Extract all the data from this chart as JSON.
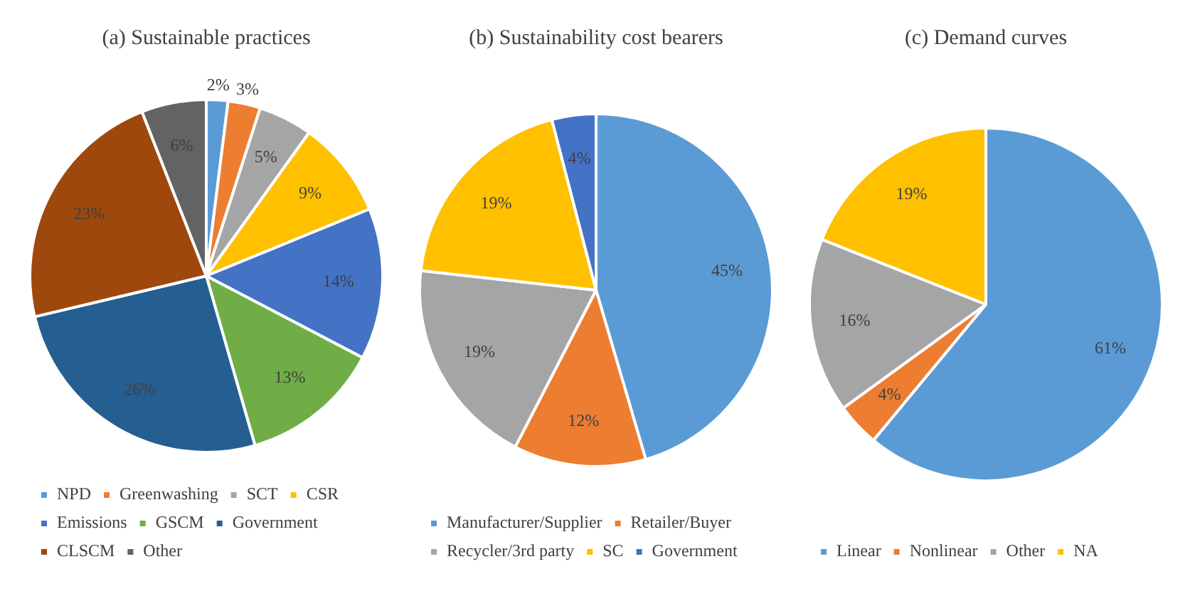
{
  "chart_data": [
    {
      "type": "pie",
      "title": "(a) Sustainable practices",
      "categories": [
        "NPD",
        "Greenwashing",
        "SCT",
        "CSR",
        "Emissions",
        "GSCM",
        "Government",
        "CLSCM",
        "Other"
      ],
      "values": [
        2,
        3,
        5,
        9,
        14,
        13,
        26,
        23,
        6
      ],
      "colors": [
        "#5b9bd5",
        "#ed7d31",
        "#a5a5a5",
        "#ffc000",
        "#4472c4",
        "#70ad47",
        "#255e91",
        "#9e480e",
        "#636363"
      ],
      "value_labels": [
        "2%",
        "3%",
        "5%",
        "9%",
        "14%",
        "13%",
        "26%",
        "23%",
        "6%"
      ],
      "legend": "bottom"
    },
    {
      "type": "pie",
      "title": "(b) Sustainability cost bearers",
      "categories": [
        "Manufacturer/Supplier",
        "Retailer/Buyer",
        "Recycler/3rd party",
        "SC",
        "Government"
      ],
      "values": [
        45,
        12,
        19,
        19,
        4
      ],
      "colors": [
        "#5b9bd5",
        "#ed7d31",
        "#a5a5a5",
        "#ffc000",
        "#4472c4"
      ],
      "value_labels": [
        "45%",
        "12%",
        "19%",
        "19%",
        "4%"
      ],
      "legend": "bottom"
    },
    {
      "type": "pie",
      "title": "(c) Demand curves",
      "categories": [
        "Linear",
        "Nonlinear",
        "Other",
        "NA"
      ],
      "values": [
        61,
        4,
        16,
        19
      ],
      "colors": [
        "#5b9bd5",
        "#ed7d31",
        "#a5a5a5",
        "#ffc000"
      ],
      "value_labels": [
        "61%",
        "4%",
        "16%",
        "19%"
      ],
      "legend": "bottom"
    }
  ]
}
